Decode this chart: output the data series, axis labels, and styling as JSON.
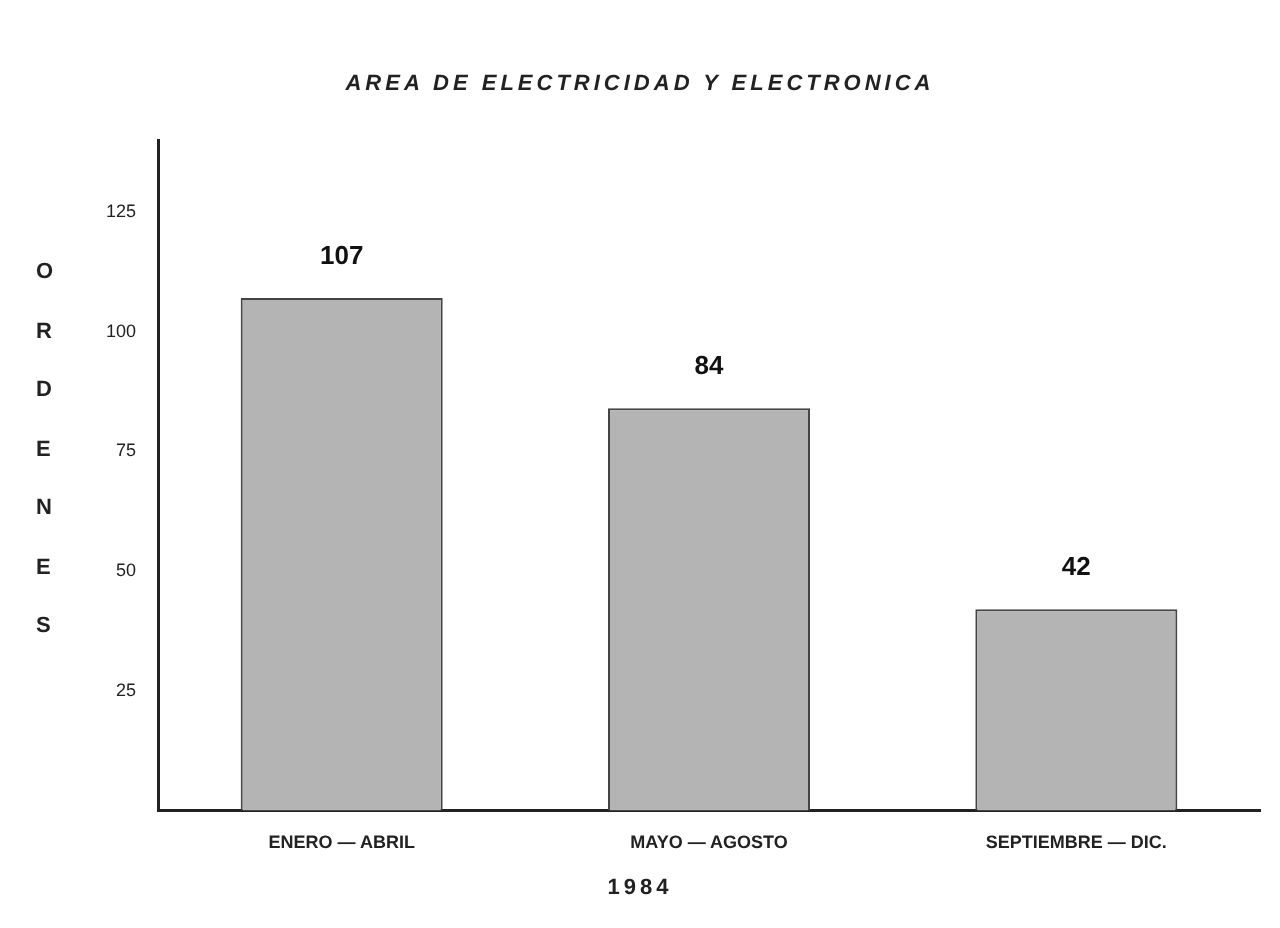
{
  "chart_data": {
    "type": "bar",
    "title": "AREA DE ELECTRICIDAD Y ELECTRONICA",
    "xlabel": "1984",
    "ylabel": "ORDENES",
    "categories": [
      "ENERO — ABRIL",
      "MAYO — AGOSTO",
      "SEPTIEMBRE — DIC."
    ],
    "values": [
      107,
      84,
      42
    ],
    "color": "#b4b4b4",
    "ylim": [
      0,
      140
    ],
    "yticks": [
      25,
      50,
      75,
      100,
      125
    ],
    "grid": false,
    "data_labels": true
  }
}
